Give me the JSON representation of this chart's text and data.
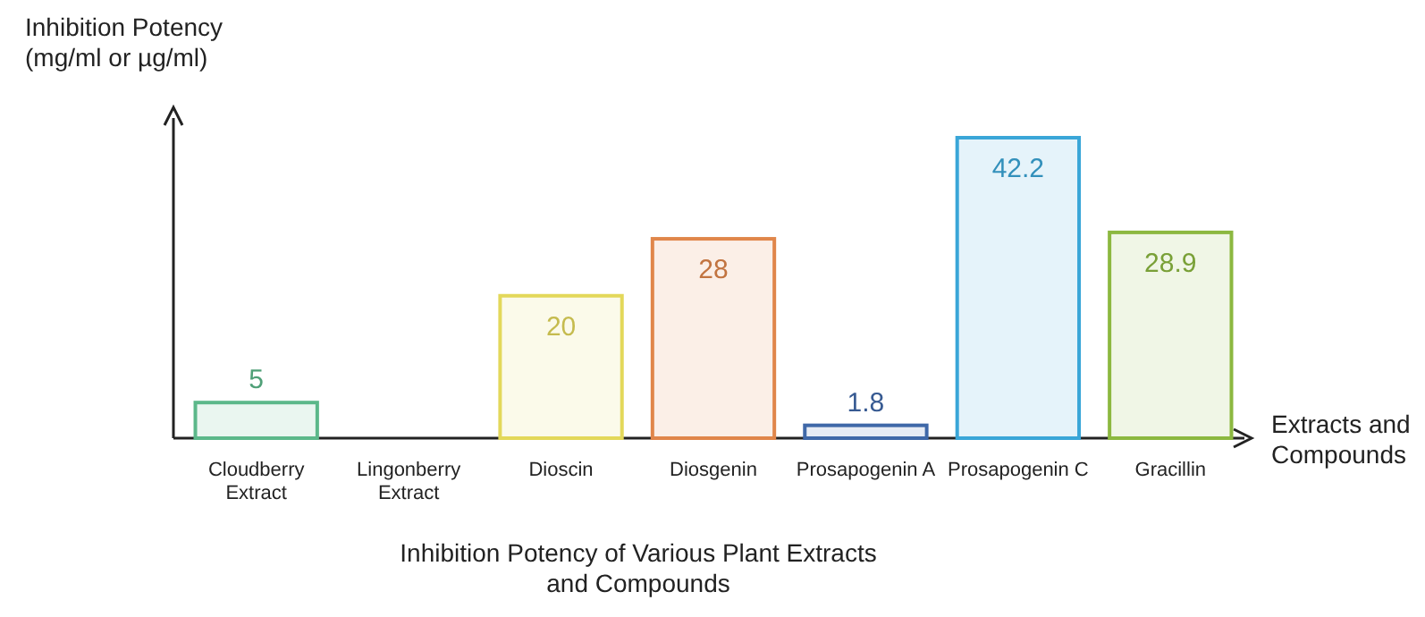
{
  "chart_data": {
    "type": "bar",
    "title": "Inhibition Potency of Various Plant Extracts and Compounds",
    "xlabel": "Extracts and Compounds",
    "ylabel": "Inhibition Potency (mg/ml or µg/ml)",
    "categories": [
      "Cloudberry Extract",
      "Lingonberry Extract",
      "Dioscin",
      "Diosgenin",
      "Prosapogenin A",
      "Prosapogenin C",
      "Gracillin"
    ],
    "values": [
      5,
      null,
      20,
      28,
      1.8,
      42.2,
      28.9
    ],
    "colors": [
      "#5cb88a",
      null,
      "#e3d85a",
      "#e0864a",
      "#3f68a8",
      "#3aa6d8",
      "#8cb840"
    ],
    "data_labels": true
  }
}
